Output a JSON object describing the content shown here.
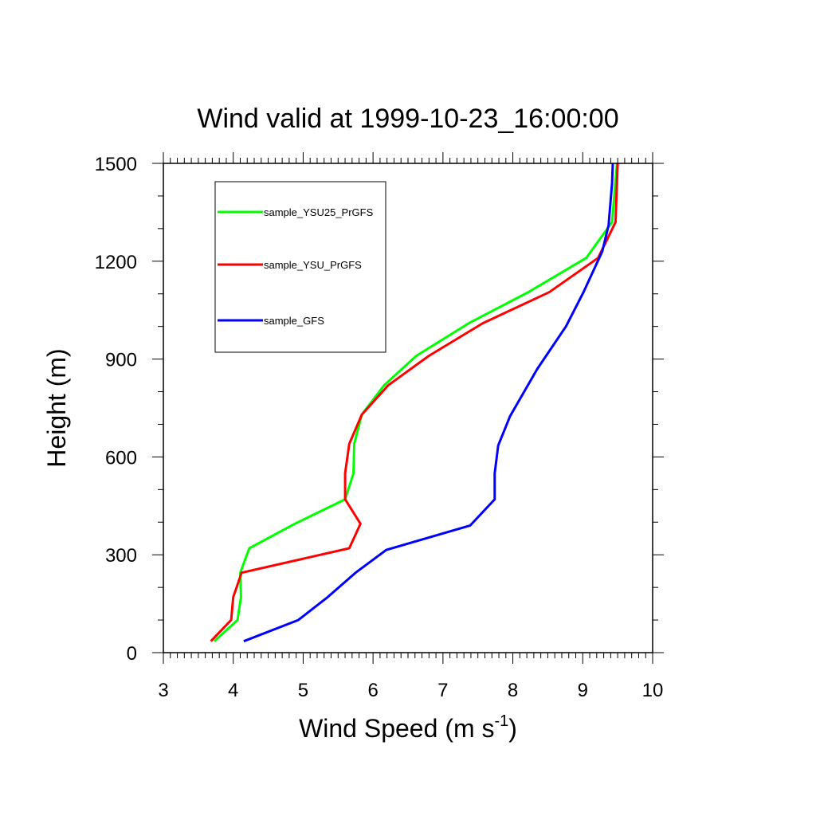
{
  "chart_data": {
    "type": "line",
    "title": "Wind valid at 1999-10-23_16:00:00",
    "xlabel": "Wind Speed (m s",
    "xlabel_superscript": "-1",
    "xlabel_suffix": ")",
    "ylabel": "Height (m)",
    "xlim": [
      3,
      10
    ],
    "ylim": [
      0,
      1500
    ],
    "x_ticks": [
      3,
      4,
      5,
      6,
      7,
      8,
      9,
      10
    ],
    "y_ticks": [
      0,
      300,
      600,
      900,
      1200,
      1500
    ],
    "x_tick_labels": [
      "3",
      "4",
      "5",
      "6",
      "7",
      "8",
      "9",
      "10"
    ],
    "y_tick_labels": [
      "0",
      "300",
      "600",
      "900",
      "1200",
      "1500"
    ],
    "grid": false,
    "legend_position": "top-left",
    "series": [
      {
        "name": "sample_YSU25_PrGFS",
        "color": "#00ff00",
        "points": [
          [
            3.73,
            35
          ],
          [
            4.06,
            100
          ],
          [
            4.11,
            170
          ],
          [
            4.1,
            245
          ],
          [
            4.23,
            320
          ],
          [
            4.88,
            395
          ],
          [
            5.6,
            470
          ],
          [
            5.72,
            550
          ],
          [
            5.73,
            640
          ],
          [
            5.84,
            730
          ],
          [
            6.16,
            820
          ],
          [
            6.62,
            910
          ],
          [
            7.37,
            1010
          ],
          [
            8.22,
            1105
          ],
          [
            9.05,
            1210
          ],
          [
            9.42,
            1320
          ],
          [
            9.49,
            1500
          ]
        ]
      },
      {
        "name": "sample_YSU_PrGFS",
        "color": "#ff0000",
        "points": [
          [
            3.68,
            35
          ],
          [
            3.97,
            100
          ],
          [
            4.0,
            170
          ],
          [
            4.12,
            245
          ],
          [
            5.66,
            320
          ],
          [
            5.82,
            395
          ],
          [
            5.6,
            470
          ],
          [
            5.6,
            550
          ],
          [
            5.66,
            640
          ],
          [
            5.84,
            730
          ],
          [
            6.22,
            820
          ],
          [
            6.8,
            910
          ],
          [
            7.57,
            1010
          ],
          [
            8.52,
            1105
          ],
          [
            9.22,
            1210
          ],
          [
            9.47,
            1320
          ],
          [
            9.5,
            1500
          ]
        ]
      },
      {
        "name": "sample_GFS",
        "color": "#0000ff",
        "points": [
          [
            4.15,
            35
          ],
          [
            4.93,
            100
          ],
          [
            5.35,
            170
          ],
          [
            5.75,
            245
          ],
          [
            6.19,
            315
          ],
          [
            7.39,
            390
          ],
          [
            7.74,
            470
          ],
          [
            7.74,
            550
          ],
          [
            7.79,
            635
          ],
          [
            7.96,
            725
          ],
          [
            8.35,
            870
          ],
          [
            8.76,
            1000
          ],
          [
            9.01,
            1105
          ],
          [
            9.28,
            1230
          ],
          [
            9.37,
            1310
          ],
          [
            9.42,
            1440
          ],
          [
            9.43,
            1500
          ]
        ]
      }
    ]
  }
}
